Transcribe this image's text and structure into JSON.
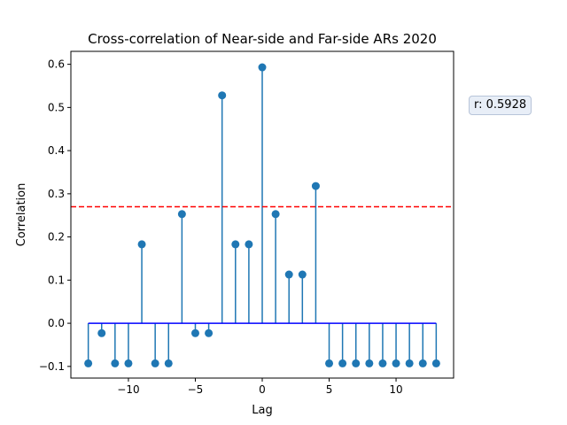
{
  "chart_data": {
    "type": "stem",
    "title": "Cross-correlation of Near-side and Far-side ARs 2020",
    "xlabel": "Lag",
    "ylabel": "Correlation",
    "xlim": [
      -14.3,
      14.3
    ],
    "ylim": [
      -0.127,
      0.63
    ],
    "x_ticks": [
      -10,
      -5,
      0,
      5,
      10
    ],
    "y_ticks": [
      -0.1,
      0.0,
      0.1,
      0.2,
      0.3,
      0.4,
      0.5,
      0.6
    ],
    "x_tick_labels": [
      "−10",
      "−5",
      "0",
      "5",
      "10"
    ],
    "y_tick_labels": [
      "−0.1",
      "0.0",
      "0.1",
      "0.2",
      "0.3",
      "0.4",
      "0.5",
      "0.6"
    ],
    "lags": [
      -13,
      -12,
      -11,
      -10,
      -9,
      -8,
      -7,
      -6,
      -5,
      -4,
      -3,
      -2,
      -1,
      0,
      1,
      2,
      3,
      4,
      5,
      6,
      7,
      8,
      9,
      10,
      11,
      12,
      13
    ],
    "values": [
      -0.093,
      -0.023,
      -0.093,
      -0.093,
      0.183,
      -0.093,
      -0.093,
      0.253,
      -0.023,
      -0.023,
      0.528,
      0.183,
      0.183,
      0.593,
      0.253,
      0.113,
      0.113,
      0.318,
      -0.093,
      -0.093,
      -0.093,
      -0.093,
      -0.093,
      -0.093,
      -0.093,
      -0.093,
      -0.093
    ],
    "threshold": 0.27,
    "grid": false,
    "colors": {
      "stem": "#1f77b4",
      "baseline": "#0000ff",
      "threshold": "#ff0000"
    }
  },
  "annotation": {
    "text": "r: 0.5928"
  }
}
